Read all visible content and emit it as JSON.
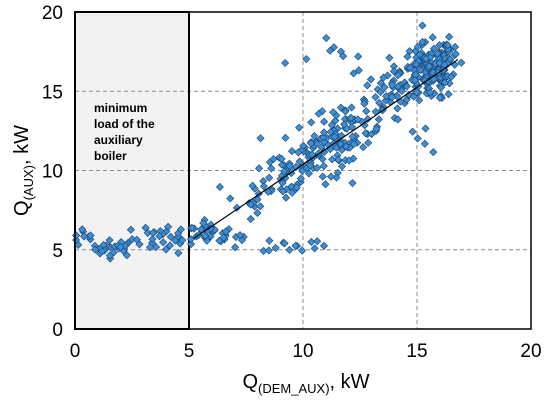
{
  "chart_data": {
    "type": "scatter",
    "xlabel": {
      "main": "Q",
      "sub": "(DEM_AUX)",
      "unit": ", kW"
    },
    "ylabel": {
      "main": "Q",
      "sub": "(AUX)",
      "unit": ", kW"
    },
    "xlim": [
      0,
      20
    ],
    "ylim": [
      0,
      20
    ],
    "xticks": [
      "0",
      "5",
      "10",
      "15",
      "20"
    ],
    "yticks": [
      "0",
      "5",
      "10",
      "15",
      "20"
    ],
    "grid": true,
    "grid_style": "dashed",
    "annotation": {
      "lines": [
        "minimum",
        "load of the",
        "auxiliary",
        "boiler"
      ],
      "region": {
        "x0": 0,
        "x1": 5,
        "y0": 0,
        "y1": 20
      },
      "fill": "#f2f2f2"
    },
    "trendline": {
      "x": [
        5.2,
        16.8
      ],
      "y": [
        5.7,
        17.0
      ]
    },
    "marker_color": "#3a8fd6",
    "marker_edge": "#1f3f66",
    "clusters": [
      {
        "cx": 0.5,
        "cy": 5.8,
        "sx": 0.45,
        "sy": 0.35,
        "n": 10
      },
      {
        "cx": 1.7,
        "cy": 5.1,
        "sx": 0.5,
        "sy": 0.25,
        "n": 26
      },
      {
        "cx": 4.0,
        "cy": 5.7,
        "sx": 0.75,
        "sy": 0.45,
        "n": 34
      },
      {
        "cx": 6.0,
        "cy": 6.0,
        "sx": 0.5,
        "sy": 0.35,
        "n": 26
      },
      {
        "cx": 7.2,
        "cy": 5.5,
        "sx": 0.5,
        "sy": 0.3,
        "n": 6
      },
      {
        "cx": 9.6,
        "cy": 5.3,
        "sx": 0.7,
        "sy": 0.25,
        "n": 14
      },
      {
        "cx": 7.5,
        "cy": 8.0,
        "sx": 0.5,
        "sy": 0.9,
        "n": 14
      },
      {
        "cx": 9.2,
        "cy": 9.8,
        "sx": 0.65,
        "sy": 0.9,
        "n": 40
      },
      {
        "cx": 10.4,
        "cy": 11.0,
        "sx": 0.65,
        "sy": 0.9,
        "n": 55
      },
      {
        "cx": 12.0,
        "cy": 12.5,
        "sx": 0.75,
        "sy": 0.85,
        "n": 70
      },
      {
        "cx": 11.6,
        "cy": 17.2,
        "sx": 0.9,
        "sy": 0.6,
        "n": 9
      },
      {
        "cx": 13.8,
        "cy": 14.7,
        "sx": 0.7,
        "sy": 0.8,
        "n": 50
      },
      {
        "cx": 15.5,
        "cy": 16.2,
        "sx": 0.6,
        "sy": 0.9,
        "n": 130
      },
      {
        "cx": 16.2,
        "cy": 17.0,
        "sx": 0.35,
        "sy": 0.6,
        "n": 45
      },
      {
        "cx": 15.0,
        "cy": 12.0,
        "sx": 0.3,
        "sy": 0.5,
        "n": 4
      },
      {
        "cx": 9.2,
        "cy": 16.8,
        "sx": 0.05,
        "sy": 0.05,
        "n": 1
      }
    ]
  }
}
